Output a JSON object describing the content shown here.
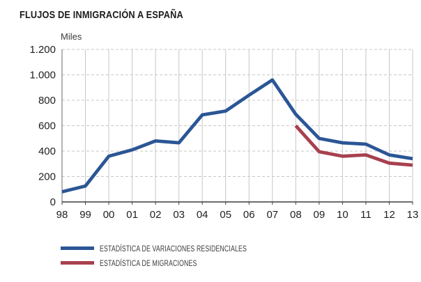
{
  "chart_data": {
    "type": "line",
    "title": "FLUJOS DE INMIGRACIÓN A ESPAÑA",
    "xlabel": "",
    "ylabel": "Miles",
    "categories": [
      "98",
      "99",
      "00",
      "01",
      "02",
      "03",
      "04",
      "05",
      "06",
      "07",
      "08",
      "09",
      "10",
      "11",
      "12",
      "13"
    ],
    "series": [
      {
        "name": "ESTADÍSTICA DE VARIACIONES RESIDENCIALES",
        "color": "#2b5695",
        "values": [
          80,
          125,
          360,
          410,
          480,
          465,
          685,
          715,
          840,
          960,
          690,
          500,
          465,
          455,
          370,
          340
        ]
      },
      {
        "name": "ESTADÍSTICA DE MIGRACIONES",
        "color": "#a7404e",
        "values": [
          null,
          null,
          null,
          null,
          null,
          null,
          null,
          null,
          null,
          null,
          600,
          395,
          360,
          370,
          305,
          290
        ]
      }
    ],
    "ylim": [
      0,
      1200
    ],
    "y_ticks": [
      0,
      200,
      400,
      600,
      800,
      1000,
      1200
    ],
    "y_tick_labels": [
      "0",
      "200",
      "400",
      "600",
      "800",
      "1.000",
      "1.200"
    ],
    "grid": true,
    "gridline_color": "#c7c7c7",
    "axis_color": "#3d3d3d",
    "legend_position": "bottom-left"
  }
}
